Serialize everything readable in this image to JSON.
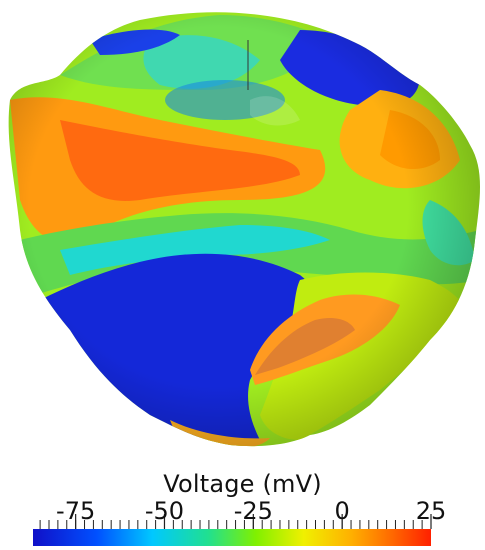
{
  "legend": {
    "title": "Voltage (mV)",
    "ticks": [
      "-75",
      "-50",
      "-25",
      "0",
      "25"
    ],
    "range": [
      -87,
      25
    ],
    "colormap": [
      "#1010c8",
      "#0050ff",
      "#00c8ff",
      "#20e090",
      "#80f000",
      "#f0f000",
      "#ffb000",
      "#ff6a00",
      "#ff2000"
    ]
  }
}
